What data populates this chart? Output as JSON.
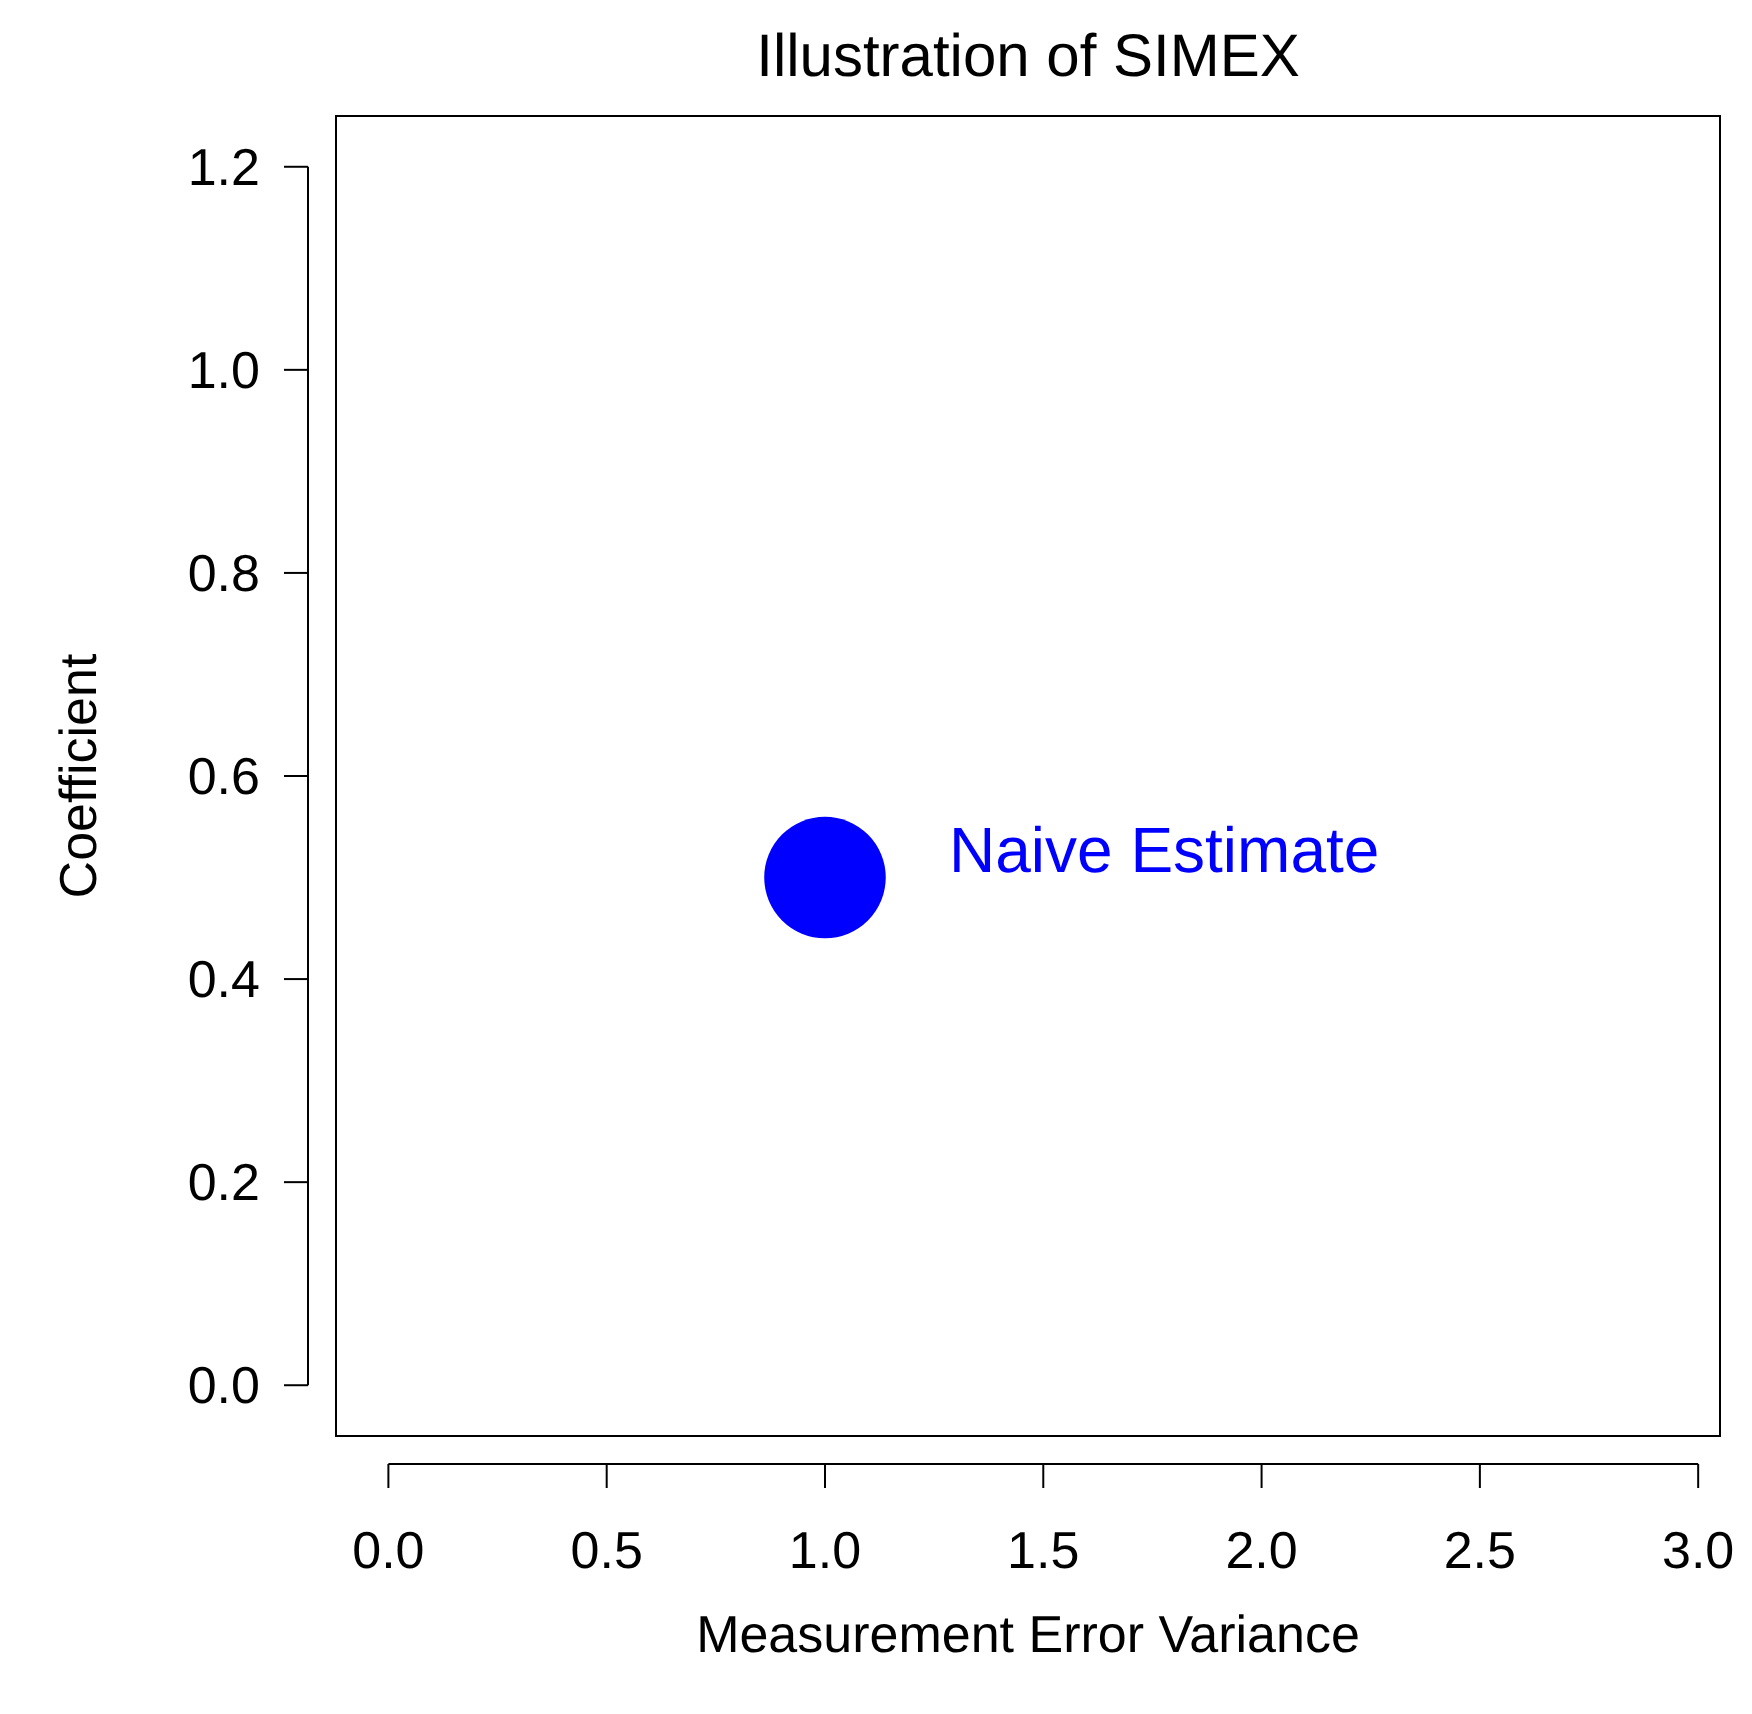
{
  "chart_data": {
    "type": "scatter",
    "title": "Illustration of SIMEX",
    "xlabel": "Measurement Error Variance",
    "ylabel": "Coefficient",
    "x": [
      1.0
    ],
    "series": [
      {
        "color": "#0000ff",
        "values": [
          0.5
        ]
      }
    ],
    "marker": "circle",
    "xlim": [
      -0.12,
      3.05
    ],
    "xticks": [
      {
        "value": 0,
        "label": "0.0"
      },
      0.5,
      {
        "value": 1,
        "label": "1.0"
      },
      1.5,
      {
        "value": 2,
        "label": "2.0"
      },
      2.5,
      {
        "value": 3,
        "label": "3.0"
      }
    ],
    "ylim": [
      -0.05,
      1.25
    ],
    "yticks": [
      {
        "value": 0,
        "label": "0.0"
      },
      0.2,
      0.4,
      0.6,
      0.8,
      {
        "value": 1,
        "label": "1.0"
      },
      1.2
    ],
    "grid": false,
    "annotations": [
      {
        "text": "Naive Estimate",
        "x": 1.0,
        "y": 0.5
      }
    ]
  }
}
